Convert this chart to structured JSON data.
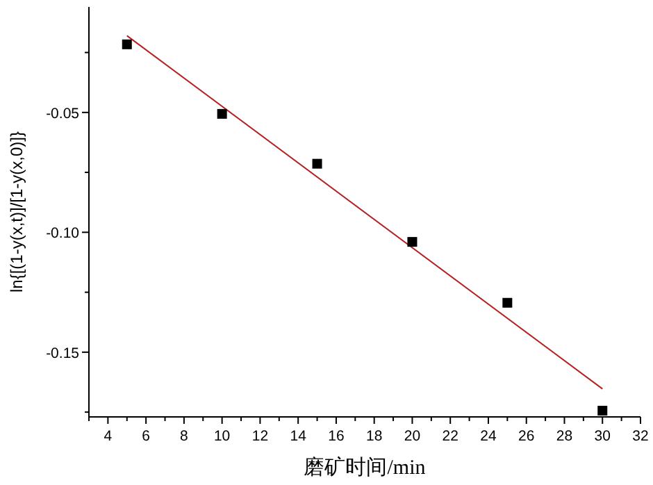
{
  "chart_data": {
    "type": "scatter",
    "xlabel": "磨矿时间/min",
    "ylabel": "ln{[(1-y(x,t)]/[1-y(x,0)]}",
    "xlim": [
      3,
      32
    ],
    "ylim": [
      -0.177,
      -0.006
    ],
    "xticks": [
      {
        "value": 3,
        "label": null
      },
      4,
      {
        "value": 5,
        "label": null
      },
      6,
      {
        "value": 7,
        "label": null
      },
      8,
      {
        "value": 9,
        "label": null
      },
      10,
      {
        "value": 11,
        "label": null
      },
      12,
      {
        "value": 13,
        "label": null
      },
      14,
      {
        "value": 15,
        "label": null
      },
      16,
      {
        "value": 17,
        "label": null
      },
      18,
      {
        "value": 19,
        "label": null
      },
      20,
      {
        "value": 21,
        "label": null
      },
      22,
      {
        "value": 23,
        "label": null
      },
      24,
      {
        "value": 25,
        "label": null
      },
      26,
      {
        "value": 27,
        "label": null
      },
      28,
      {
        "value": 29,
        "label": null
      },
      30,
      {
        "value": 31,
        "label": null
      },
      32
    ],
    "yticks": [
      {
        "value": -0.025,
        "label": null
      },
      {
        "value": -0.05,
        "label": "-0.05"
      },
      {
        "value": -0.075,
        "label": null
      },
      {
        "value": -0.1,
        "label": "-0.10"
      },
      {
        "value": -0.125,
        "label": null
      },
      {
        "value": -0.15,
        "label": "-0.15"
      },
      {
        "value": -0.175,
        "label": null
      }
    ],
    "grid": false,
    "series": [
      {
        "color": "#000000",
        "marker": "square",
        "x": [
          5,
          10,
          15,
          20,
          25,
          30
        ],
        "values": [
          -0.0216,
          -0.0506,
          -0.0714,
          -0.104,
          -0.1294,
          -0.1744
        ]
      },
      {
        "type": "line",
        "color": "#b22222",
        "marker": "none",
        "line_style": "solid",
        "x": [
          5,
          30
        ],
        "values": [
          -0.018,
          -0.1653
        ]
      }
    ]
  }
}
